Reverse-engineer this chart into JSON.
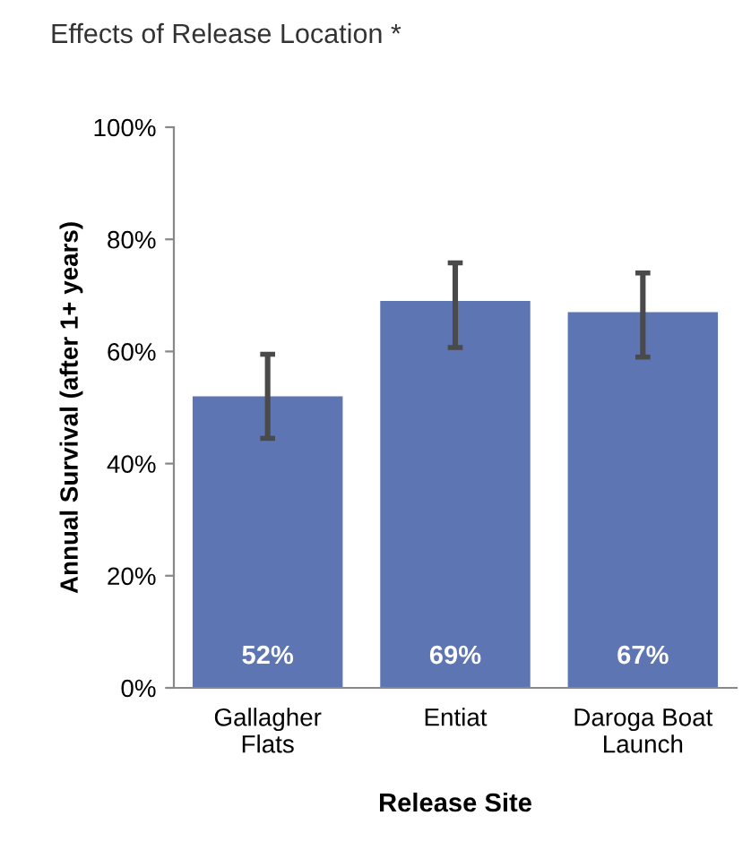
{
  "chart_data": {
    "type": "bar",
    "title": "Effects of Release Location *",
    "xlabel": "Release Site",
    "ylabel": "Annual Survival (after 1+ years)",
    "categories": [
      "Gallagher\nFlats",
      "Entiat",
      "Daroga Boat\nLaunch"
    ],
    "values": [
      52,
      69,
      67
    ],
    "color": "#5e75b4",
    "errors": [
      [
        44.5,
        59.5
      ],
      [
        60.7,
        75.8
      ],
      [
        59,
        74
      ]
    ],
    "value_labels": [
      "52%",
      "69%",
      "67%"
    ],
    "ylim": [
      0,
      100
    ],
    "yticks": [
      {
        "value": 0,
        "label": "0%"
      },
      {
        "value": 20,
        "label": "20%"
      },
      {
        "value": 40,
        "label": "40%"
      },
      {
        "value": 60,
        "label": "60%"
      },
      {
        "value": 80,
        "label": "80%"
      },
      {
        "value": 100,
        "label": "100%"
      }
    ],
    "grid": false
  }
}
